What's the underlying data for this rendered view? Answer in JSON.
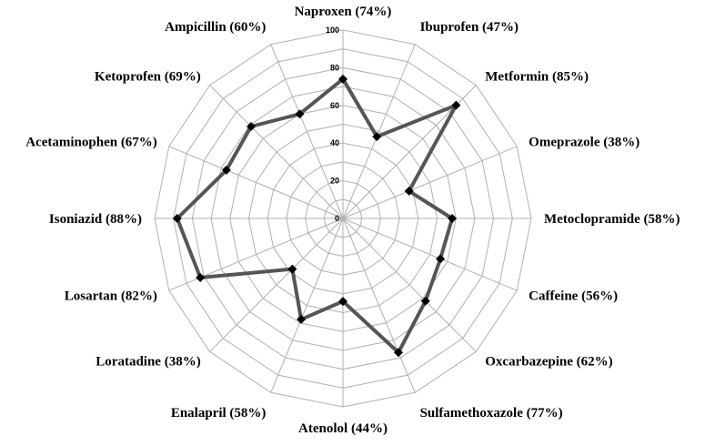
{
  "chart_data": {
    "type": "radar",
    "categories": [
      "Naproxen (74%)",
      "Ibuprofen (47%)",
      "Metformin (85%)",
      "Omeprazole (38%)",
      "Metoclopramide (58%)",
      "Caffeine (56%)",
      "Oxcarbazepine (62%)",
      "Sulfamethoxazole (77%)",
      "Atenolol (44%)",
      "Enalapril (58%)",
      "Loratadine (38%)",
      "Losartan (82%)",
      "Isoniazid (88%)",
      "Acetaminophen (67%)",
      "Ketoprofen (69%)",
      "Ampicillin (60%)"
    ],
    "values": [
      74,
      47,
      85,
      38,
      58,
      56,
      62,
      77,
      44,
      58,
      38,
      82,
      88,
      67,
      69,
      60
    ],
    "rlim": [
      0,
      100
    ],
    "ticks": [
      "0",
      "20",
      "40",
      "60",
      "80",
      "100"
    ],
    "tick_values": [
      0,
      20,
      40,
      60,
      80,
      100
    ],
    "grid": true,
    "series_color": "#555555",
    "marker_color": "#000000",
    "grid_color": "#b0b0b0"
  }
}
